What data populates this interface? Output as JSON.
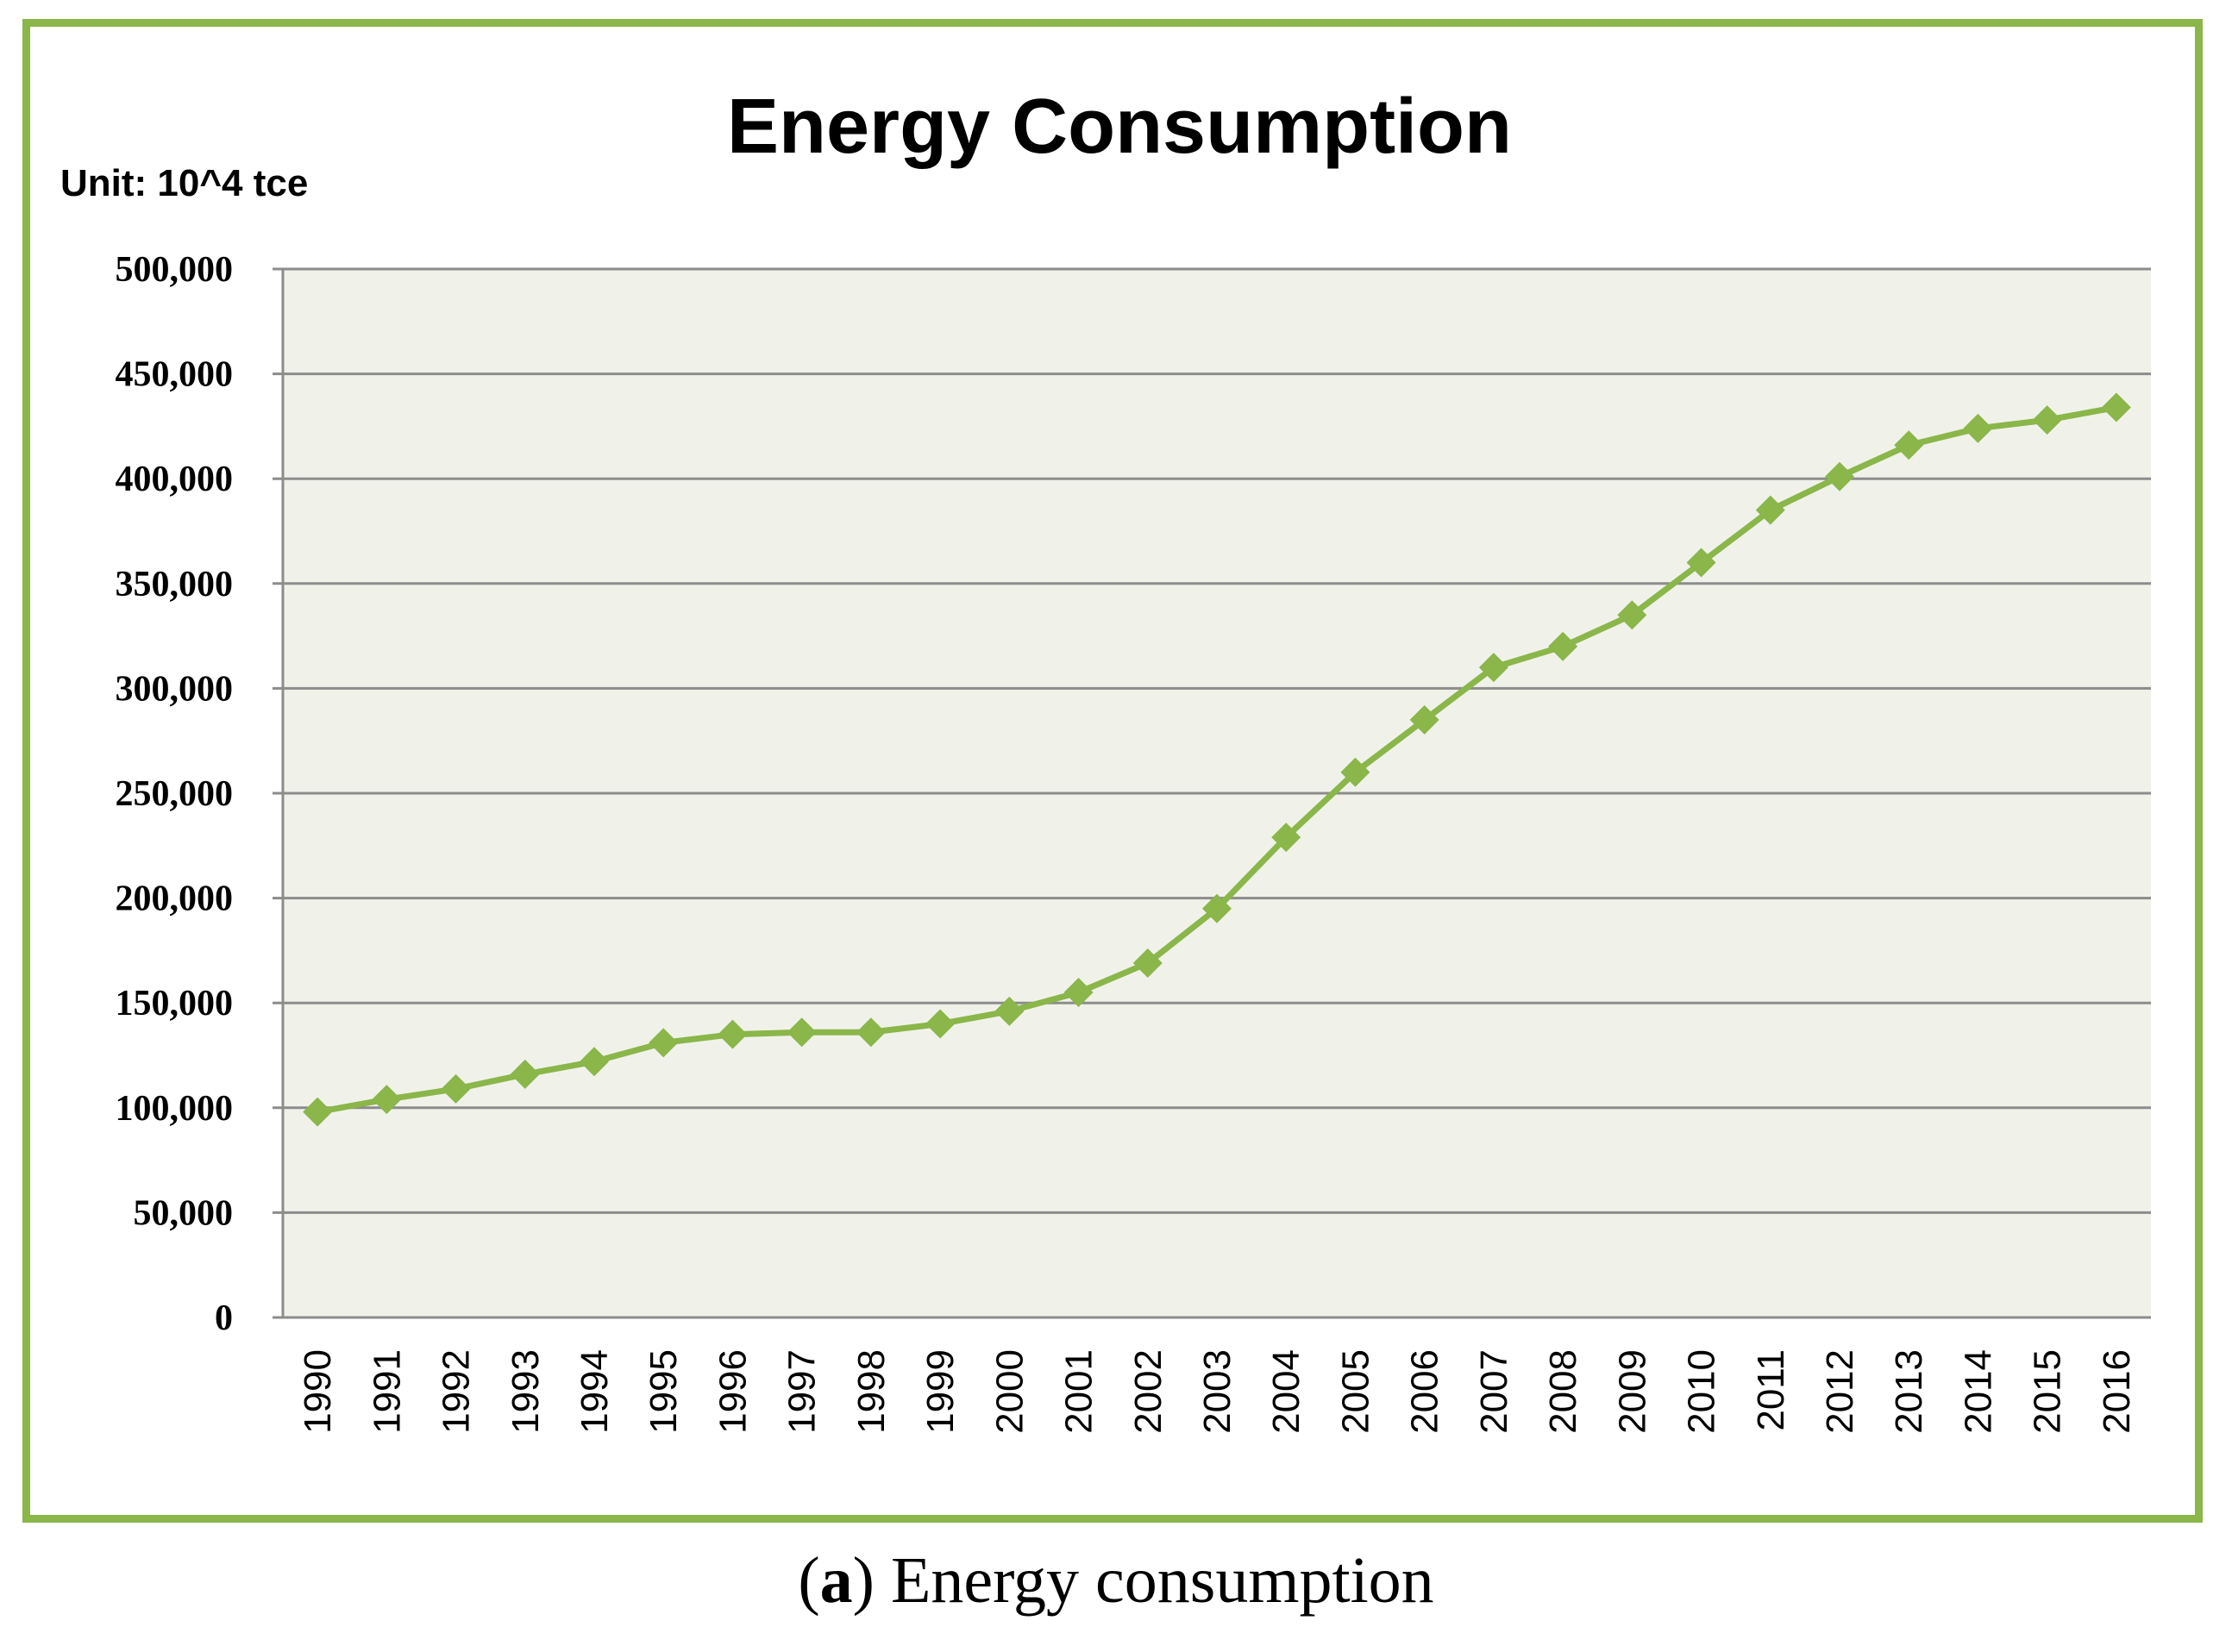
{
  "chart_data": {
    "type": "line",
    "title": "Energy Consumption",
    "unit_label": "Unit: 10^4 tce",
    "xlabel": "",
    "ylabel": "",
    "ylim": [
      0,
      500000
    ],
    "yticks": [
      0,
      50000,
      100000,
      150000,
      200000,
      250000,
      300000,
      350000,
      400000,
      450000,
      500000
    ],
    "ytick_labels": [
      "0",
      "50,000",
      "100,000",
      "150,000",
      "200,000",
      "250,000",
      "300,000",
      "350,000",
      "400,000",
      "450,000",
      "500,000"
    ],
    "grid": true,
    "legend": "none",
    "categories": [
      "1990",
      "1991",
      "1992",
      "1993",
      "1994",
      "1995",
      "1996",
      "1997",
      "1998",
      "1999",
      "2000",
      "2001",
      "2002",
      "2003",
      "2004",
      "2005",
      "2006",
      "2007",
      "2008",
      "2009",
      "2010",
      "2011",
      "2012",
      "2013",
      "2014",
      "2015",
      "2016"
    ],
    "series": [
      {
        "name": "Energy Consumption",
        "values": [
          98000,
          104000,
          109000,
          116000,
          122000,
          131000,
          135000,
          136000,
          136000,
          140000,
          146000,
          155000,
          169000,
          195000,
          229000,
          260000,
          285000,
          310000,
          320000,
          335000,
          360000,
          385000,
          401000,
          416000,
          424000,
          428000,
          434000
        ]
      }
    ],
    "colors": {
      "line": "#8ab64a",
      "marker": "#8ab64a",
      "plot_bg": "#f0f2ea",
      "grid": "#8c8c8c",
      "frame": "#8ab64a"
    }
  },
  "caption": {
    "letter": "a",
    "text": "Energy consumption"
  }
}
